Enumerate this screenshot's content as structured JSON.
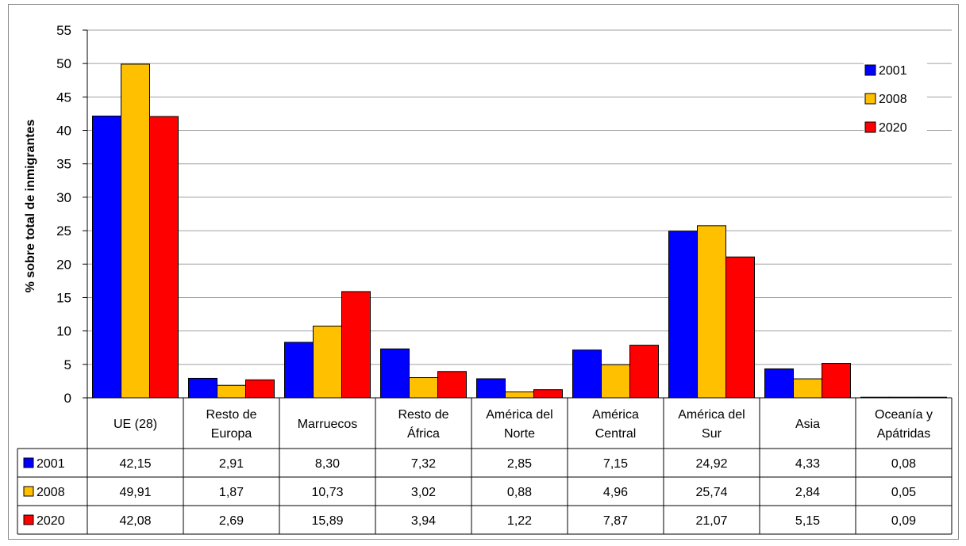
{
  "chart_data": {
    "type": "bar",
    "ylabel": "% sobre total de inmigrantes",
    "ylim": [
      0,
      55
    ],
    "y_ticks": [
      "0",
      "5",
      "10",
      "15",
      "20",
      "25",
      "30",
      "35",
      "40",
      "45",
      "50",
      "55"
    ],
    "grid": true,
    "legend_position": "top-right",
    "categories": [
      [
        "UE (28)"
      ],
      [
        "Resto de",
        "Europa"
      ],
      [
        "Marruecos"
      ],
      [
        "Resto de",
        "África"
      ],
      [
        "América del",
        "Norte"
      ],
      [
        "América",
        "Central"
      ],
      [
        "América del",
        "Sur"
      ],
      [
        "Asia"
      ],
      [
        "Oceanía y",
        "Apátridas"
      ]
    ],
    "series": [
      {
        "name": "2001",
        "color": "#0000ff",
        "values": [
          42.15,
          2.91,
          8.3,
          7.32,
          2.85,
          7.15,
          24.92,
          4.33,
          0.08
        ],
        "labels": [
          "42,15",
          "2,91",
          "8,30",
          "7,32",
          "2,85",
          "7,15",
          "24,92",
          "4,33",
          "0,08"
        ]
      },
      {
        "name": "2008",
        "color": "#ffc000",
        "values": [
          49.91,
          1.87,
          10.73,
          3.02,
          0.88,
          4.96,
          25.74,
          2.84,
          0.05
        ],
        "labels": [
          "49,91",
          "1,87",
          "10,73",
          "3,02",
          "0,88",
          "4,96",
          "25,74",
          "2,84",
          "0,05"
        ]
      },
      {
        "name": "2020",
        "color": "#ff0000",
        "values": [
          42.08,
          2.69,
          15.89,
          3.94,
          1.22,
          7.87,
          21.07,
          5.15,
          0.09
        ],
        "labels": [
          "42,08",
          "2,69",
          "15,89",
          "3,94",
          "1,22",
          "7,87",
          "21,07",
          "5,15",
          "0,09"
        ]
      }
    ]
  }
}
